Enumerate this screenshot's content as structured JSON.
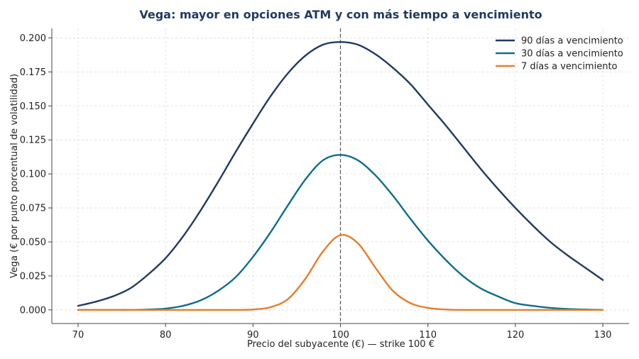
{
  "chart_data": {
    "type": "line",
    "title": "Vega: mayor en opciones ATM y con más tiempo a vencimiento",
    "xlabel": "Precio del subyacente (€) — strike 100 €",
    "ylabel": "Vega (€ por punto porcentual de volatilidad)",
    "xlim": [
      67,
      133
    ],
    "ylim": [
      -0.01,
      0.207
    ],
    "xticks": [
      70,
      80,
      90,
      100,
      110,
      120,
      130
    ],
    "yticks": [
      0.0,
      0.025,
      0.05,
      0.075,
      0.1,
      0.125,
      0.15,
      0.175,
      0.2
    ],
    "xtick_labels": [
      "70",
      "80",
      "90",
      "100",
      "110",
      "120",
      "130"
    ],
    "ytick_labels": [
      "0.000",
      "0.025",
      "0.050",
      "0.075",
      "0.100",
      "0.125",
      "0.150",
      "0.175",
      "0.200"
    ],
    "grid": true,
    "legend_position": "top-right",
    "reference_line": {
      "x": 100,
      "style": "dashed"
    },
    "x": [
      70,
      72,
      74,
      76,
      78,
      80,
      82,
      84,
      86,
      88,
      90,
      92,
      94,
      96,
      98,
      100,
      102,
      104,
      106,
      108,
      110,
      112,
      114,
      116,
      118,
      120,
      122,
      124,
      126,
      128,
      130
    ],
    "series": [
      {
        "name": "90 días a vencimiento",
        "color": "#1f3a5f",
        "values": [
          0.003,
          0.006,
          0.01,
          0.016,
          0.026,
          0.038,
          0.054,
          0.073,
          0.094,
          0.116,
          0.137,
          0.157,
          0.174,
          0.187,
          0.195,
          0.197,
          0.195,
          0.188,
          0.178,
          0.166,
          0.151,
          0.136,
          0.12,
          0.104,
          0.089,
          0.075,
          0.062,
          0.05,
          0.04,
          0.031,
          0.022
        ]
      },
      {
        "name": "30 días a vencimiento",
        "color": "#0e6e8c",
        "values": [
          0.0,
          0.0,
          0.0,
          0.0,
          0.0003,
          0.001,
          0.003,
          0.007,
          0.014,
          0.024,
          0.039,
          0.057,
          0.077,
          0.096,
          0.11,
          0.114,
          0.11,
          0.099,
          0.084,
          0.067,
          0.051,
          0.037,
          0.025,
          0.016,
          0.01,
          0.005,
          0.003,
          0.0015,
          0.0007,
          0.0003,
          0.0001
        ]
      },
      {
        "name": "7 días a vencimiento",
        "color": "#e87d2a",
        "values": [
          0.0,
          0.0,
          0.0,
          0.0,
          0.0,
          0.0,
          0.0,
          0.0,
          0.0,
          0.0,
          0.0003,
          0.002,
          0.008,
          0.023,
          0.043,
          0.055,
          0.049,
          0.031,
          0.014,
          0.005,
          0.0015,
          0.0003,
          0.0,
          0.0,
          0.0,
          0.0,
          0.0,
          0.0,
          0.0,
          0.0,
          0.0
        ]
      }
    ]
  }
}
